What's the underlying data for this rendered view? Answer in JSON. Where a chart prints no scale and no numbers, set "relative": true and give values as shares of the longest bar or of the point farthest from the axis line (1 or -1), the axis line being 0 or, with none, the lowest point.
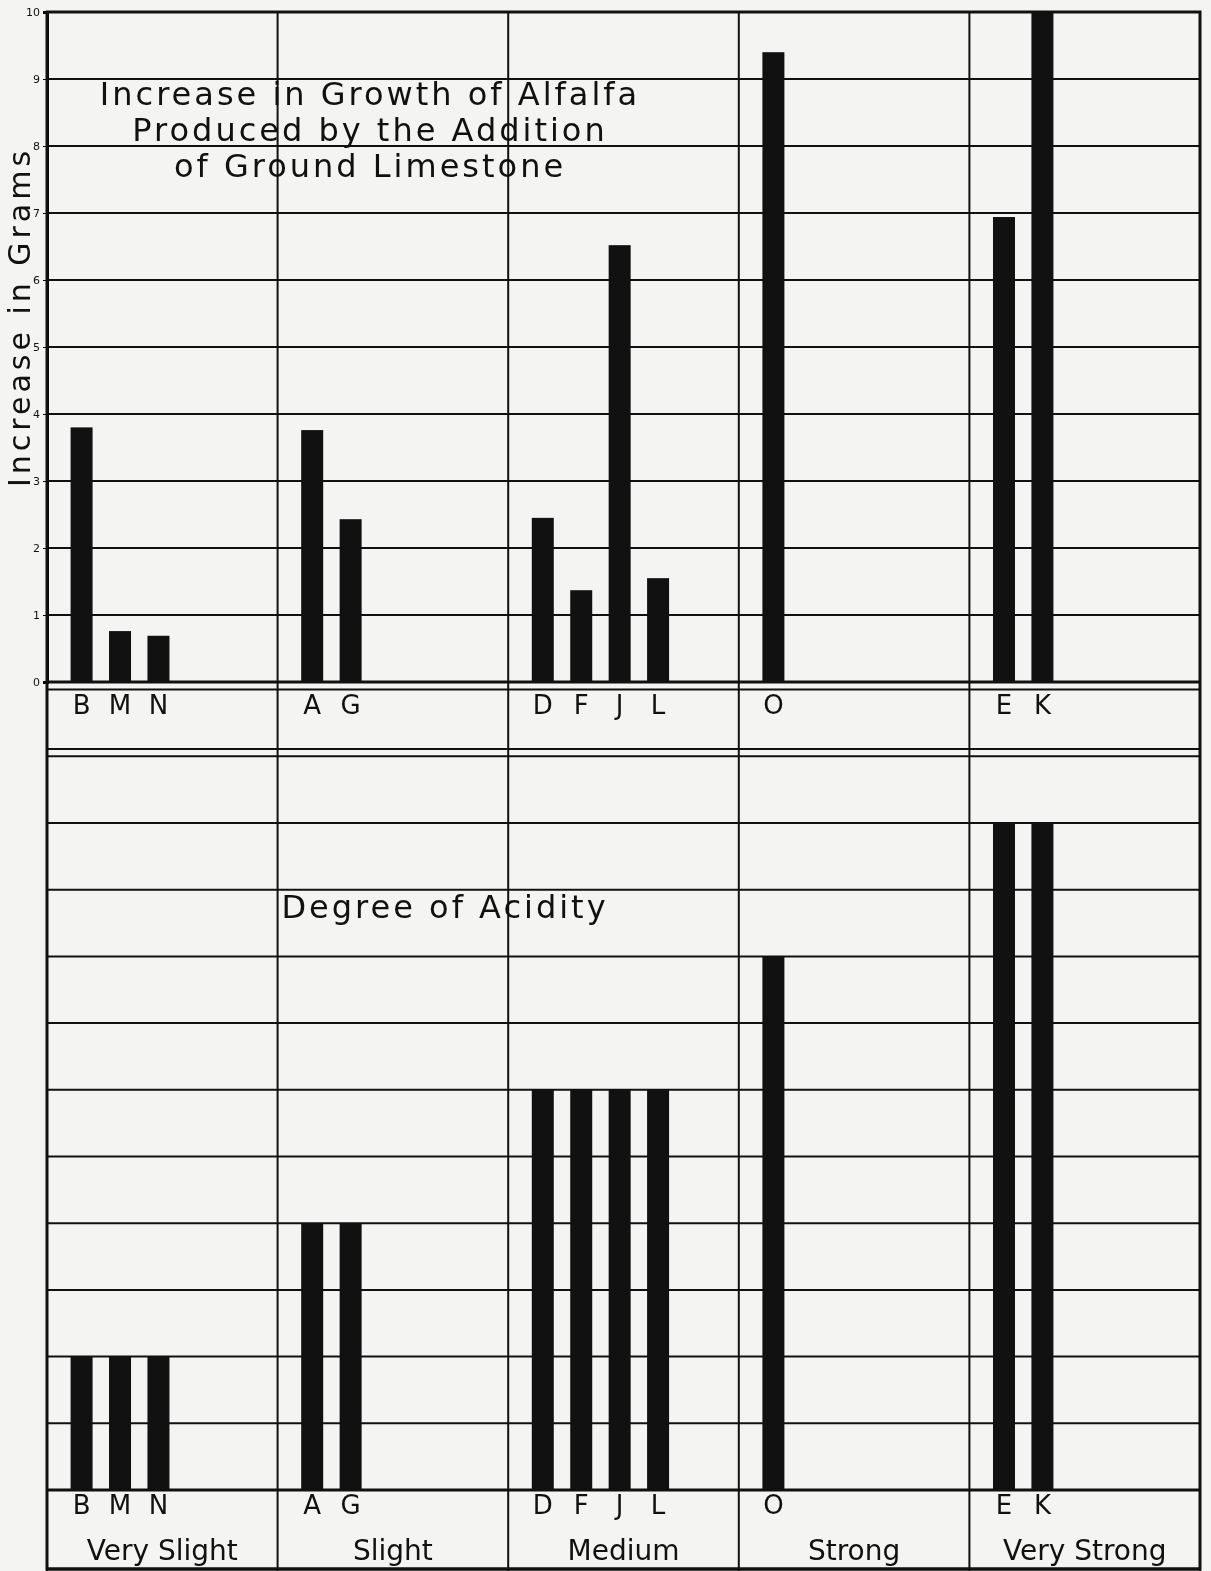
{
  "chart_data": [
    {
      "type": "bar",
      "title": "Increase in Growth of Alfalfa\nProduced by the Addition\nof Ground Limestone",
      "ylabel": "Increase in Grams",
      "categories": [
        "B",
        "M",
        "N",
        null,
        null,
        null,
        "A",
        "G",
        null,
        null,
        null,
        null,
        "D",
        "F",
        "J",
        "L",
        null,
        null,
        "O",
        null,
        null,
        null,
        null,
        null,
        "E",
        "K",
        null,
        null,
        null,
        null
      ],
      "series": [
        {
          "color": "#111111",
          "values": [
            3.8,
            0.76,
            0.69,
            null,
            null,
            null,
            3.76,
            2.43,
            null,
            null,
            null,
            null,
            2.45,
            1.37,
            6.52,
            1.55,
            null,
            null,
            9.4,
            null,
            null,
            null,
            null,
            null,
            6.94,
            10,
            null,
            null,
            null,
            null
          ]
        }
      ],
      "ylim": [
        0,
        10
      ],
      "yticks": [
        0,
        1,
        2,
        3,
        4,
        5,
        6,
        7,
        8,
        9,
        10
      ],
      "grid": true
    },
    {
      "type": "bar",
      "title": "Degree of Acidity",
      "relative": true,
      "categories": [
        "B",
        "M",
        "N",
        null,
        null,
        null,
        "A",
        "G",
        null,
        null,
        null,
        null,
        "D",
        "F",
        "J",
        "L",
        null,
        null,
        "O",
        null,
        null,
        null,
        null,
        null,
        "E",
        "K",
        null,
        null,
        null,
        null
      ],
      "series": [
        {
          "color": "#111111",
          "values": [
            0.2,
            0.2,
            0.2,
            null,
            null,
            null,
            0.4,
            0.4,
            null,
            null,
            null,
            null,
            0.6,
            0.6,
            0.6,
            0.6,
            null,
            null,
            0.8,
            null,
            null,
            null,
            null,
            null,
            1,
            1,
            null,
            null,
            null,
            null
          ]
        }
      ],
      "annotations": [
        "Very Slight",
        "Slight",
        "Medium",
        "Strong",
        "Very Strong"
      ],
      "grid": true
    }
  ]
}
